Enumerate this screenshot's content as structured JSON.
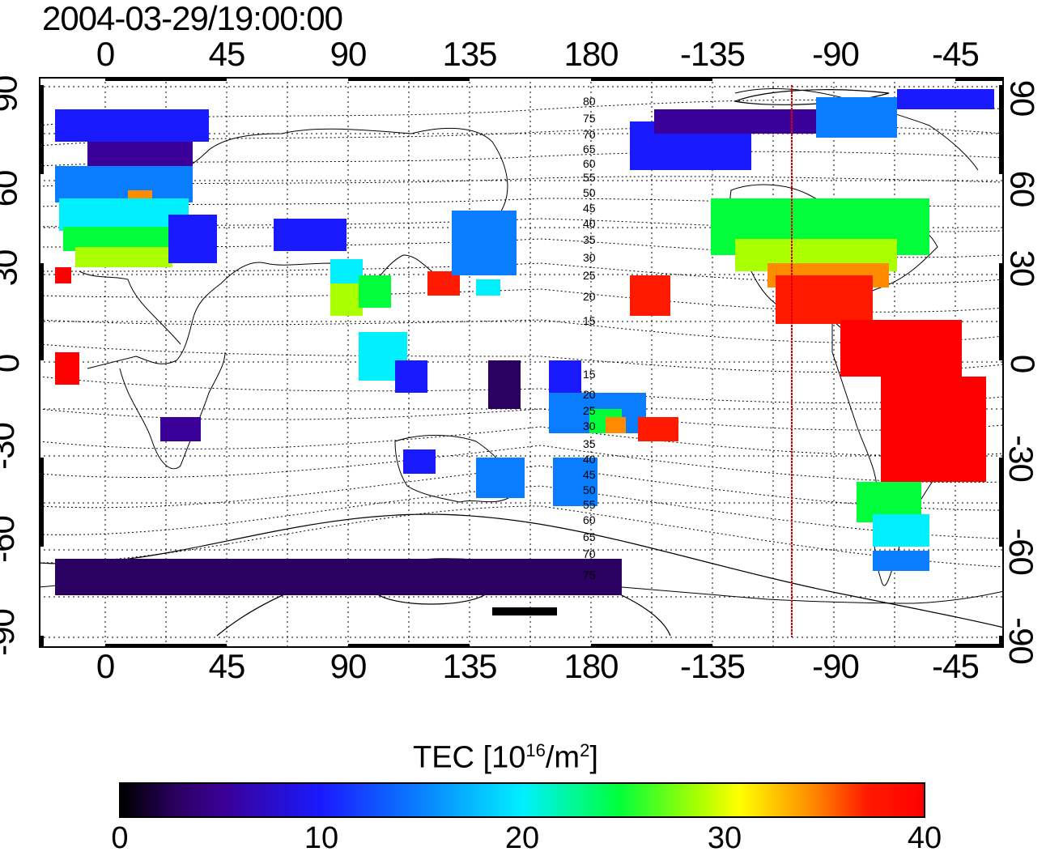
{
  "timestamp": "2004-03-29/19:00:00",
  "axes": {
    "top_longitude_labels": [
      "0",
      "45",
      "90",
      "135",
      "180",
      "-135",
      "-90",
      "-45"
    ],
    "bottom_longitude_labels": [
      "0",
      "45",
      "90",
      "135",
      "180",
      "-135",
      "-90",
      "-45"
    ],
    "latitude_labels": [
      "90",
      "60",
      "30",
      "0",
      "-30",
      "-60",
      "-90"
    ]
  },
  "contour_labels_north": [
    "80",
    "75",
    "70",
    "65",
    "60",
    "55",
    "50",
    "45",
    "40",
    "35",
    "30",
    "25",
    "20",
    "15"
  ],
  "contour_labels_south": [
    "15",
    "20",
    "25",
    "30",
    "35",
    "40",
    "45",
    "50",
    "55",
    "60",
    "65",
    "70",
    "75"
  ],
  "colorbar": {
    "title_main": "TEC  [10",
    "title_exp": "16",
    "title_unit": "/m",
    "title_unit_exp": "2",
    "title_close": "]",
    "tick_labels": [
      "0",
      "10",
      "20",
      "30",
      "40"
    ],
    "range": [
      0,
      40
    ],
    "colors": [
      "#000000",
      "#3a0098",
      "#1a1aff",
      "#00f0ff",
      "#00ff3a",
      "#ffff00",
      "#ff8c00",
      "#ff0000"
    ]
  },
  "marker_color": "#e00000"
}
